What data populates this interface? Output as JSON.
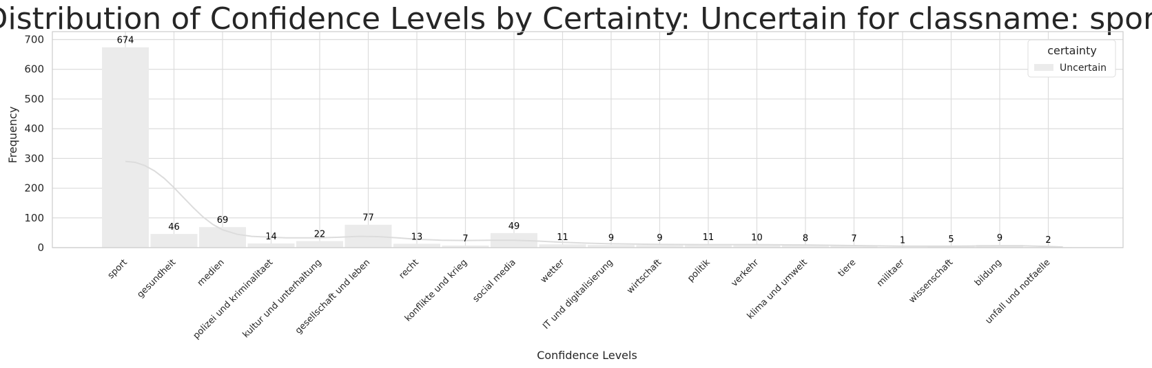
{
  "chart_data": {
    "type": "bar",
    "title": "Distribution of Confidence Levels by Certainty: Uncertain for classname: sport",
    "xlabel": "Confidence Levels",
    "ylabel": "Frequency",
    "categories": [
      "sport",
      "gesundheit",
      "medien",
      "polizei und kriminalitaet",
      "kultur und unterhaltung",
      "gesellschaft und leben",
      "recht",
      "konflikte und krieg",
      "social media",
      "wetter",
      "IT und digitalisierung",
      "wirtschaft",
      "politik",
      "verkehr",
      "klima und umwelt",
      "tiere",
      "militaer",
      "wissenschaft",
      "bildung",
      "unfall und notfaelle"
    ],
    "series": [
      {
        "name": "Uncertain",
        "values": [
          674,
          46,
          69,
          14,
          22,
          77,
          13,
          7,
          49,
          11,
          9,
          9,
          11,
          10,
          8,
          7,
          1,
          5,
          9,
          2
        ],
        "color": "#ebebeb"
      }
    ],
    "data_labels": [
      "674",
      "46",
      "69",
      "14",
      "22",
      "77",
      "13",
      "7",
      "49",
      "11",
      "9",
      "9",
      "11",
      "10",
      "8",
      "7",
      "1",
      "5",
      "9",
      "2"
    ],
    "kde_line": [
      [
        0.0,
        290
      ],
      [
        0.2,
        287
      ],
      [
        0.4,
        276
      ],
      [
        0.6,
        258
      ],
      [
        0.8,
        233
      ],
      [
        1.0,
        202
      ],
      [
        1.2,
        168
      ],
      [
        1.4,
        134
      ],
      [
        1.6,
        103
      ],
      [
        1.8,
        78
      ],
      [
        2.0,
        60
      ],
      [
        2.3,
        45
      ],
      [
        2.6,
        38
      ],
      [
        3.0,
        35
      ],
      [
        3.3,
        33
      ],
      [
        3.6,
        33
      ],
      [
        4.0,
        33
      ],
      [
        4.4,
        35
      ],
      [
        4.8,
        38
      ],
      [
        5.2,
        37
      ],
      [
        5.6,
        33
      ],
      [
        6.0,
        28
      ],
      [
        6.5,
        25
      ],
      [
        7.0,
        24
      ],
      [
        7.5,
        25
      ],
      [
        8.0,
        25
      ],
      [
        8.5,
        22
      ],
      [
        9.0,
        18
      ],
      [
        9.5,
        15
      ],
      [
        10.0,
        13
      ],
      [
        11.0,
        11
      ],
      [
        12.0,
        10
      ],
      [
        13.0,
        10
      ],
      [
        14.0,
        9
      ],
      [
        15.0,
        7
      ],
      [
        16.0,
        5
      ],
      [
        17.0,
        5
      ],
      [
        18.0,
        6
      ],
      [
        18.5,
        6
      ],
      [
        19.0,
        4
      ],
      [
        19.3,
        2
      ]
    ],
    "ylim": [
      0,
      710
    ],
    "yticks": [
      0,
      100,
      200,
      300,
      400,
      500,
      600,
      700
    ],
    "grid": true,
    "legend": {
      "title": "certainty",
      "entries": [
        "Uncertain"
      ],
      "placement": "top-right"
    },
    "colors": {
      "bar": "#ebebeb",
      "kde": "#dcdcdc",
      "grid": "#dcdcdc",
      "spine": "#cccccc",
      "text": "#262626"
    }
  }
}
